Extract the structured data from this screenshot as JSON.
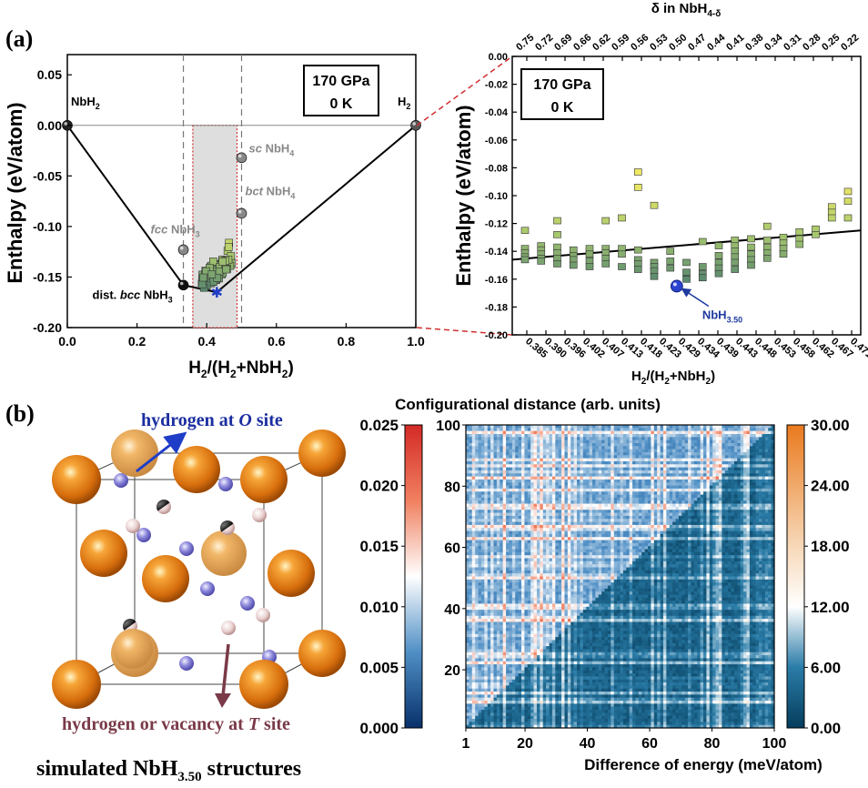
{
  "panel_a_label": "(a)",
  "panel_b_label": "(b)",
  "chart_data": [
    {
      "type": "scatter",
      "id": "hull-full",
      "xlabel": "H2/(H2+NbH2)",
      "ylabel": "Enthalpy (eV/atom)",
      "xlim": [
        0,
        1
      ],
      "ylim": [
        -0.2,
        0.07
      ],
      "xticks": [
        "0.0",
        "0.2",
        "0.4",
        "0.6",
        "0.8",
        "1.0"
      ],
      "yticks": [
        "-0.20",
        "-0.15",
        "-0.10",
        "-0.05",
        "0.00",
        "0.05"
      ],
      "annotation_box": [
        "170 GPa",
        "0 K"
      ],
      "hull": [
        [
          0,
          0
        ],
        [
          0.333,
          -0.158
        ],
        [
          0.429,
          -0.165
        ],
        [
          1.0,
          0
        ]
      ],
      "reference_line_y": 0,
      "dashed_x": [
        0.333,
        0.5
      ],
      "highlight_range": [
        0.36,
        0.487
      ],
      "labeled_points": [
        {
          "label": "NbH2",
          "x": 0.0,
          "y": 0.0
        },
        {
          "label": "H2",
          "x": 1.0,
          "y": 0.0
        },
        {
          "label": "dist. bcc NbH3",
          "x": 0.333,
          "y": -0.158
        },
        {
          "label": "fcc NbH3",
          "x": 0.333,
          "y": -0.123
        },
        {
          "label": "sc NbH4",
          "x": 0.5,
          "y": -0.032
        },
        {
          "label": "bct NbH4",
          "x": 0.5,
          "y": -0.087
        },
        {
          "label": "NbH3.50",
          "x": 0.429,
          "y": -0.165
        }
      ]
    },
    {
      "type": "scatter",
      "id": "hull-zoom",
      "xlabel": "H2/(H2+NbH2)",
      "ylabel": "Enthalpy (eV/atom)",
      "top_label": "δ in NbH4-δ",
      "ylim": [
        -0.2,
        0.0
      ],
      "yticks": [
        "0.00",
        "-0.02",
        "-0.04",
        "-0.06",
        "-0.08",
        "-0.10",
        "-0.12",
        "-0.14",
        "-0.16",
        "-0.18",
        "-0.20"
      ],
      "xticks": [
        "0.385",
        "0.390",
        "0.396",
        "0.402",
        "0.407",
        "0.413",
        "0.418",
        "0.423",
        "0.429",
        "0.434",
        "0.439",
        "0.443",
        "0.448",
        "0.453",
        "0.458",
        "0.462",
        "0.467",
        "0.471"
      ],
      "top_ticks": [
        "0.75",
        "0.72",
        "0.69",
        "0.66",
        "0.62",
        "0.59",
        "0.56",
        "0.53",
        "0.50",
        "0.47",
        "0.44",
        "0.41",
        "0.38",
        "0.34",
        "0.31",
        "0.28",
        "0.25",
        "0.22"
      ],
      "annotation_box": [
        "170 GPa",
        "0 K"
      ],
      "hull_line": {
        "start": -0.146,
        "end": -0.125
      },
      "columns": [
        [
          -0.125,
          -0.138,
          -0.141,
          -0.144,
          -0.146
        ],
        [
          -0.136,
          -0.139,
          -0.142,
          -0.145,
          -0.147
        ],
        [
          -0.118,
          -0.128,
          -0.137,
          -0.141,
          -0.145,
          -0.149
        ],
        [
          -0.139,
          -0.143,
          -0.146,
          -0.15
        ],
        [
          -0.138,
          -0.142,
          -0.147,
          -0.151
        ],
        [
          -0.118,
          -0.138,
          -0.141,
          -0.145,
          -0.149
        ],
        [
          -0.116,
          -0.138,
          -0.142,
          -0.151
        ],
        [
          -0.083,
          -0.094,
          -0.139,
          -0.146,
          -0.149,
          -0.153
        ],
        [
          -0.107,
          -0.148,
          -0.151,
          -0.154,
          -0.158
        ],
        [
          -0.14,
          -0.147,
          -0.152
        ],
        [
          -0.148,
          -0.155,
          -0.16
        ],
        [
          -0.133,
          -0.151,
          -0.156,
          -0.159
        ],
        [
          -0.136,
          -0.143,
          -0.148,
          -0.152,
          -0.156
        ],
        [
          -0.132,
          -0.136,
          -0.14,
          -0.144,
          -0.148,
          -0.153
        ],
        [
          -0.131,
          -0.137,
          -0.142,
          -0.146,
          -0.15
        ],
        [
          -0.122,
          -0.132,
          -0.137,
          -0.141,
          -0.145
        ],
        [
          -0.13,
          -0.134,
          -0.138,
          -0.142
        ],
        [
          -0.126,
          -0.131,
          -0.135
        ],
        [
          -0.124,
          -0.128
        ],
        [
          -0.108,
          -0.112,
          -0.116
        ],
        [
          -0.097,
          -0.104,
          -0.116
        ]
      ],
      "highlight": {
        "label": "NbH3.50",
        "col": 9.4,
        "y": -0.165
      }
    },
    {
      "type": "heatmap",
      "id": "distance-energy-map",
      "title": "Configurational distance (arb. units)",
      "xlabel": "Difference of energy (meV/atom)",
      "xticks": [
        "1",
        "20",
        "40",
        "60",
        "80",
        "100"
      ],
      "yticks": [
        "20",
        "40",
        "60",
        "80",
        "100"
      ],
      "n": 100,
      "left_colorbar": {
        "ticks": [
          "0.000",
          "0.005",
          "0.010",
          "0.015",
          "0.020",
          "0.025"
        ],
        "min": 0,
        "max": 0.025
      },
      "right_colorbar": {
        "ticks": [
          "0.00",
          "6.00",
          "12.00",
          "18.00",
          "24.00",
          "30.00"
        ],
        "min": 0,
        "max": 30
      }
    }
  ],
  "structure": {
    "top_label_prefix": "hydrogen at ",
    "top_label_site": "O",
    "top_label_suffix": " site",
    "bottom_label_prefix": "hydrogen or vacancy at ",
    "bottom_label_site": "T",
    "bottom_label_suffix": " site",
    "caption_prefix": "simulated NbH",
    "caption_sub": "3.50",
    "caption_suffix": " structures",
    "colors": {
      "nb": "#e07a10",
      "h_octa": "#8a86d6",
      "h_tetra": "#e9d0cf",
      "arrow_o": "#1f3ec7",
      "arrow_t": "#7a3a48",
      "label_o": "#1b2ea0",
      "label_t": "#7a3a48"
    }
  }
}
